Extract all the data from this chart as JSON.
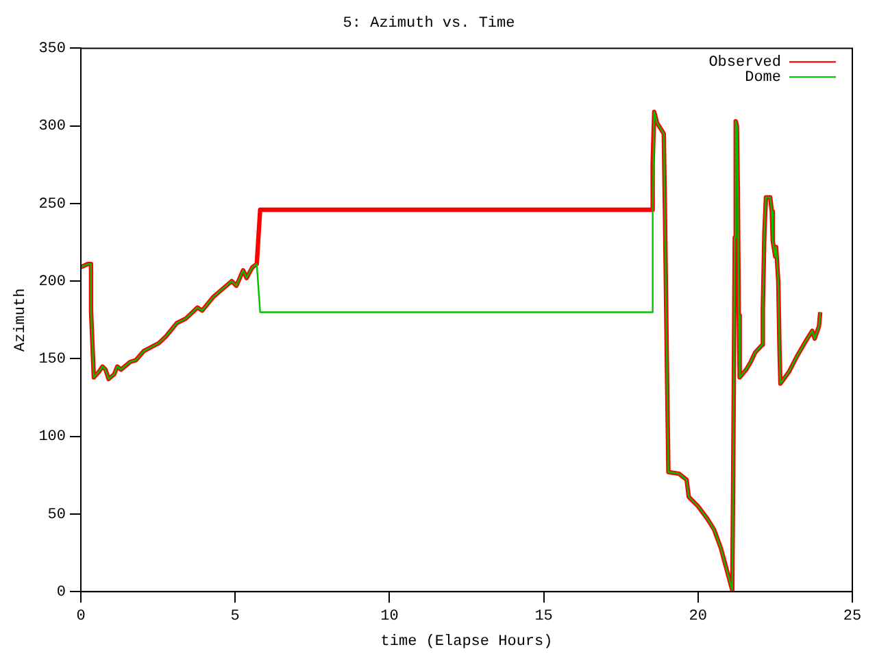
{
  "chart_data": {
    "type": "line",
    "title": "5: Azimuth vs. Time",
    "xlabel": "time (Elapse Hours)",
    "ylabel": "Azimuth",
    "xlim": [
      0,
      25
    ],
    "xticks": [
      0,
      5,
      10,
      15,
      20,
      25
    ],
    "ylim": [
      0,
      350
    ],
    "yticks": [
      0,
      50,
      100,
      150,
      200,
      250,
      300,
      350
    ],
    "grid": false,
    "legend": "top right",
    "marker": "none",
    "line_style": "solid",
    "series": [
      {
        "name": "Observed",
        "color": "#ff0000",
        "x": [
          0,
          0.22,
          0.33,
          0.33,
          0.42,
          0.6,
          0.7,
          0.8,
          0.9,
          1.08,
          1.18,
          1.3,
          1.6,
          1.78,
          2.04,
          2.52,
          2.74,
          3.11,
          3.41,
          3.78,
          3.93,
          4.3,
          4.89,
          5.04,
          5.26,
          5.37,
          5.56,
          5.7,
          5.81,
          18.53,
          18.53,
          18.58,
          18.67,
          18.89,
          18.93,
          19.0,
          19.04,
          19.38,
          19.63,
          19.7,
          20.0,
          20.3,
          20.52,
          20.74,
          20.89,
          21.04,
          21.11,
          21.14,
          21.19,
          21.22,
          21.26,
          21.29,
          21.32,
          21.35,
          21.56,
          21.71,
          21.85,
          22.08,
          22.1,
          22.15,
          22.2,
          22.34,
          22.39,
          22.42,
          22.5,
          22.53,
          22.6,
          22.64,
          22.67,
          22.96,
          23.19,
          23.48,
          23.7,
          23.78,
          23.92,
          23.96
        ],
        "values": [
          209,
          211,
          211,
          181,
          138,
          142,
          145,
          143,
          137,
          140,
          145,
          143,
          148,
          149,
          155,
          160,
          164,
          173,
          176,
          183,
          181,
          190,
          200,
          197,
          207,
          202,
          209,
          211,
          246,
          246,
          276,
          309,
          302,
          295,
          241,
          132,
          77,
          76,
          72,
          61,
          55,
          47,
          40,
          28,
          17,
          6,
          1,
          77,
          228,
          303,
          300,
          259,
          178,
          138,
          143,
          148,
          154,
          159,
          182,
          231,
          254,
          254,
          245,
          226,
          216,
          222,
          200,
          156,
          134,
          142,
          151,
          161,
          168,
          163,
          171,
          180
        ]
      },
      {
        "name": "Dome",
        "color": "#00c000",
        "x": [
          0,
          0.22,
          0.33,
          0.33,
          0.42,
          0.6,
          0.7,
          0.8,
          0.9,
          1.08,
          1.18,
          1.3,
          1.6,
          1.78,
          2.04,
          2.52,
          2.74,
          3.11,
          3.41,
          3.78,
          3.93,
          4.3,
          4.89,
          5.04,
          5.26,
          5.37,
          5.56,
          5.7,
          5.81,
          18.53,
          18.53,
          18.58,
          18.67,
          18.89,
          18.93,
          19.0,
          19.04,
          19.38,
          19.63,
          19.7,
          20.0,
          20.3,
          20.52,
          20.74,
          20.89,
          21.04,
          21.11,
          21.14,
          21.19,
          21.22,
          21.26,
          21.29,
          21.32,
          21.35,
          21.56,
          21.71,
          21.85,
          22.08,
          22.1,
          22.15,
          22.2,
          22.34,
          22.39,
          22.42,
          22.5,
          22.53,
          22.6,
          22.64,
          22.67,
          22.96,
          23.19,
          23.48,
          23.7,
          23.78,
          23.92,
          23.96
        ],
        "values": [
          209,
          211,
          211,
          181,
          138,
          142,
          145,
          143,
          137,
          140,
          145,
          143,
          148,
          149,
          155,
          160,
          164,
          173,
          176,
          183,
          181,
          190,
          200,
          197,
          207,
          202,
          209,
          211,
          180,
          180,
          245,
          309,
          302,
          295,
          241,
          132,
          77,
          76,
          72,
          61,
          55,
          47,
          40,
          28,
          17,
          6,
          1,
          77,
          228,
          303,
          300,
          259,
          178,
          138,
          143,
          148,
          154,
          159,
          182,
          231,
          254,
          254,
          245,
          226,
          216,
          222,
          200,
          156,
          134,
          142,
          151,
          161,
          168,
          163,
          171,
          180
        ]
      }
    ]
  }
}
